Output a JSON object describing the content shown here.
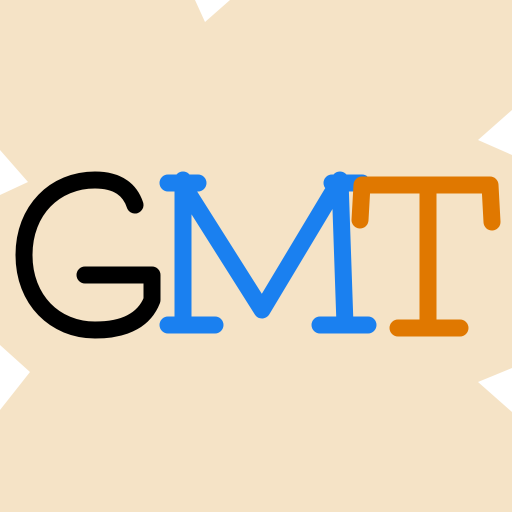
{
  "logo": {
    "text": "GMT",
    "letters": [
      {
        "char": "G",
        "color": "#000000"
      },
      {
        "char": "M",
        "color": "#1a80f0"
      },
      {
        "char": "T",
        "color": "#e07800"
      }
    ],
    "background_color": "#f5e3c6",
    "corner_color": "#ffffff"
  }
}
